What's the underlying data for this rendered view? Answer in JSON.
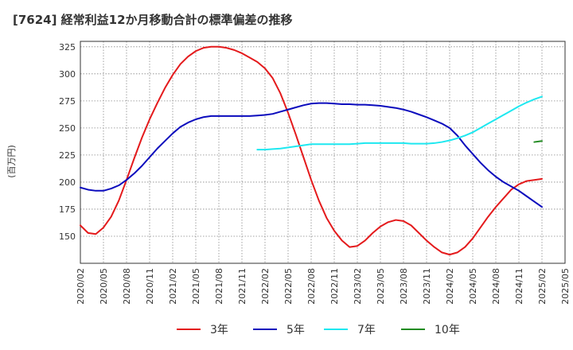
{
  "chart_data": {
    "type": "line",
    "title": "[7624]  経常利益12か月移動合計の標準偏差の推移",
    "ylabel": "(百万円)",
    "ylim": [
      125,
      330
    ],
    "yticks": [
      150,
      175,
      200,
      225,
      250,
      275,
      300,
      325
    ],
    "xlim": [
      "2020-02",
      "2025-05"
    ],
    "xticks": [
      "2020/02",
      "2020/05",
      "2020/08",
      "2020/11",
      "2021/02",
      "2021/05",
      "2021/08",
      "2021/11",
      "2022/02",
      "2022/05",
      "2022/08",
      "2022/11",
      "2023/02",
      "2023/05",
      "2023/08",
      "2023/11",
      "2024/02",
      "2024/05",
      "2024/08",
      "2024/11",
      "2025/02",
      "2025/05"
    ],
    "grid": "dotted",
    "legend_position": "bottom",
    "series": [
      {
        "name": "3年",
        "color": "#e41a1c",
        "points": [
          [
            "2020-02",
            160
          ],
          [
            "2020-03",
            153
          ],
          [
            "2020-04",
            152
          ],
          [
            "2020-05",
            158
          ],
          [
            "2020-06",
            168
          ],
          [
            "2020-07",
            183
          ],
          [
            "2020-08",
            202
          ],
          [
            "2020-09",
            222
          ],
          [
            "2020-10",
            241
          ],
          [
            "2020-11",
            258
          ],
          [
            "2020-12",
            273
          ],
          [
            "2021-01",
            287
          ],
          [
            "2021-02",
            299
          ],
          [
            "2021-03",
            309
          ],
          [
            "2021-04",
            316
          ],
          [
            "2021-05",
            321
          ],
          [
            "2021-06",
            324
          ],
          [
            "2021-07",
            325
          ],
          [
            "2021-08",
            325
          ],
          [
            "2021-09",
            324
          ],
          [
            "2021-10",
            322
          ],
          [
            "2021-11",
            319
          ],
          [
            "2021-12",
            315
          ],
          [
            "2022-01",
            311
          ],
          [
            "2022-02",
            305
          ],
          [
            "2022-03",
            296
          ],
          [
            "2022-04",
            282
          ],
          [
            "2022-05",
            264
          ],
          [
            "2022-06",
            244
          ],
          [
            "2022-07",
            223
          ],
          [
            "2022-08",
            202
          ],
          [
            "2022-09",
            183
          ],
          [
            "2022-10",
            167
          ],
          [
            "2022-11",
            155
          ],
          [
            "2022-12",
            146
          ],
          [
            "2023-01",
            140
          ],
          [
            "2023-02",
            141
          ],
          [
            "2023-03",
            146
          ],
          [
            "2023-04",
            153
          ],
          [
            "2023-05",
            159
          ],
          [
            "2023-06",
            163
          ],
          [
            "2023-07",
            165
          ],
          [
            "2023-08",
            164
          ],
          [
            "2023-09",
            160
          ],
          [
            "2023-10",
            153
          ],
          [
            "2023-11",
            146
          ],
          [
            "2023-12",
            140
          ],
          [
            "2024-01",
            135
          ],
          [
            "2024-02",
            133
          ],
          [
            "2024-03",
            135
          ],
          [
            "2024-04",
            140
          ],
          [
            "2024-05",
            148
          ],
          [
            "2024-06",
            158
          ],
          [
            "2024-07",
            168
          ],
          [
            "2024-08",
            177
          ],
          [
            "2024-09",
            185
          ],
          [
            "2024-10",
            193
          ],
          [
            "2024-11",
            198
          ],
          [
            "2024-12",
            201
          ],
          [
            "2025-01",
            202
          ],
          [
            "2025-02",
            203
          ]
        ]
      },
      {
        "name": "5年",
        "color": "#0b0bbd",
        "points": [
          [
            "2020-02",
            195
          ],
          [
            "2020-03",
            193
          ],
          [
            "2020-04",
            192
          ],
          [
            "2020-05",
            192
          ],
          [
            "2020-06",
            194
          ],
          [
            "2020-07",
            197
          ],
          [
            "2020-08",
            202
          ],
          [
            "2020-09",
            208
          ],
          [
            "2020-10",
            215
          ],
          [
            "2020-11",
            223
          ],
          [
            "2020-12",
            231
          ],
          [
            "2021-01",
            238
          ],
          [
            "2021-02",
            245
          ],
          [
            "2021-03",
            251
          ],
          [
            "2021-04",
            255
          ],
          [
            "2021-05",
            258
          ],
          [
            "2021-06",
            260
          ],
          [
            "2021-07",
            261
          ],
          [
            "2021-08",
            261
          ],
          [
            "2021-09",
            261
          ],
          [
            "2021-10",
            261
          ],
          [
            "2021-11",
            261
          ],
          [
            "2021-12",
            261
          ],
          [
            "2022-01",
            261.5
          ],
          [
            "2022-02",
            262
          ],
          [
            "2022-03",
            263
          ],
          [
            "2022-04",
            265
          ],
          [
            "2022-05",
            267
          ],
          [
            "2022-06",
            269
          ],
          [
            "2022-07",
            271
          ],
          [
            "2022-08",
            272.5
          ],
          [
            "2022-09",
            273
          ],
          [
            "2022-10",
            273
          ],
          [
            "2022-11",
            272.5
          ],
          [
            "2022-12",
            272
          ],
          [
            "2023-01",
            272
          ],
          [
            "2023-02",
            271.5
          ],
          [
            "2023-03",
            271.5
          ],
          [
            "2023-04",
            271
          ],
          [
            "2023-05",
            270.5
          ],
          [
            "2023-06",
            269.5
          ],
          [
            "2023-07",
            268.5
          ],
          [
            "2023-08",
            267
          ],
          [
            "2023-09",
            265
          ],
          [
            "2023-10",
            262.5
          ],
          [
            "2023-11",
            260
          ],
          [
            "2023-12",
            257
          ],
          [
            "2024-01",
            254
          ],
          [
            "2024-02",
            250
          ],
          [
            "2024-03",
            243
          ],
          [
            "2024-04",
            234
          ],
          [
            "2024-05",
            226
          ],
          [
            "2024-06",
            218
          ],
          [
            "2024-07",
            211
          ],
          [
            "2024-08",
            205
          ],
          [
            "2024-09",
            200
          ],
          [
            "2024-10",
            196
          ],
          [
            "2024-11",
            192
          ],
          [
            "2024-12",
            187
          ],
          [
            "2025-01",
            182
          ],
          [
            "2025-02",
            177
          ]
        ]
      },
      {
        "name": "7年",
        "color": "#1ee8f0",
        "points": [
          [
            "2022-01",
            230
          ],
          [
            "2022-02",
            230
          ],
          [
            "2022-03",
            230.5
          ],
          [
            "2022-04",
            231
          ],
          [
            "2022-05",
            232
          ],
          [
            "2022-06",
            233
          ],
          [
            "2022-07",
            234
          ],
          [
            "2022-08",
            235
          ],
          [
            "2022-09",
            235
          ],
          [
            "2022-10",
            235
          ],
          [
            "2022-11",
            235
          ],
          [
            "2022-12",
            235
          ],
          [
            "2023-01",
            235
          ],
          [
            "2023-02",
            235.5
          ],
          [
            "2023-03",
            236
          ],
          [
            "2023-04",
            236
          ],
          [
            "2023-05",
            236
          ],
          [
            "2023-06",
            236
          ],
          [
            "2023-07",
            236
          ],
          [
            "2023-08",
            236
          ],
          [
            "2023-09",
            235.5
          ],
          [
            "2023-10",
            235.5
          ],
          [
            "2023-11",
            235.5
          ],
          [
            "2023-12",
            236
          ],
          [
            "2024-01",
            237
          ],
          [
            "2024-02",
            238.5
          ],
          [
            "2024-03",
            240.5
          ],
          [
            "2024-04",
            243
          ],
          [
            "2024-05",
            246
          ],
          [
            "2024-06",
            250
          ],
          [
            "2024-07",
            254
          ],
          [
            "2024-08",
            258
          ],
          [
            "2024-09",
            262
          ],
          [
            "2024-10",
            266
          ],
          [
            "2024-11",
            270
          ],
          [
            "2024-12",
            273.5
          ],
          [
            "2025-01",
            276.5
          ],
          [
            "2025-02",
            279
          ]
        ]
      },
      {
        "name": "10年",
        "color": "#228b22",
        "points": [
          [
            "2025-01",
            237
          ],
          [
            "2025-02",
            238
          ]
        ]
      }
    ]
  }
}
